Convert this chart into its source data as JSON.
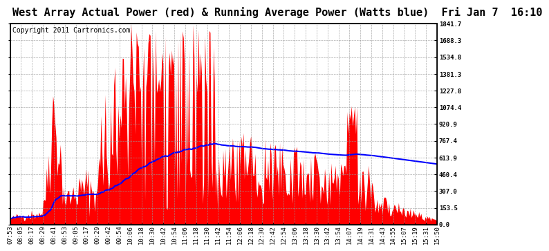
{
  "title": "West Array Actual Power (red) & Running Average Power (Watts blue)  Fri Jan 7  16:10",
  "copyright": "Copyright 2011 Cartronics.com",
  "ylabel_right_values": [
    0.0,
    153.5,
    307.0,
    460.4,
    613.9,
    767.4,
    920.9,
    1074.4,
    1227.8,
    1381.3,
    1534.8,
    1688.3,
    1841.7
  ],
  "ymax": 1841.7,
  "ymin": 0.0,
  "fill_color": "red",
  "avg_color": "blue",
  "background_color": "#ffffff",
  "title_fontsize": 11,
  "copyright_fontsize": 7,
  "tick_label_fontsize": 6.5,
  "grid_color": "#999999",
  "x_labels": [
    "07:53",
    "08:05",
    "08:17",
    "08:29",
    "08:41",
    "08:53",
    "09:05",
    "09:17",
    "09:29",
    "09:42",
    "09:54",
    "10:06",
    "10:18",
    "10:30",
    "10:42",
    "10:54",
    "11:06",
    "11:18",
    "11:30",
    "11:42",
    "11:54",
    "12:06",
    "12:18",
    "12:30",
    "12:42",
    "12:54",
    "13:06",
    "13:18",
    "13:30",
    "13:42",
    "13:54",
    "14:07",
    "14:19",
    "14:31",
    "14:43",
    "14:55",
    "15:07",
    "15:19",
    "15:31",
    "15:50"
  ]
}
